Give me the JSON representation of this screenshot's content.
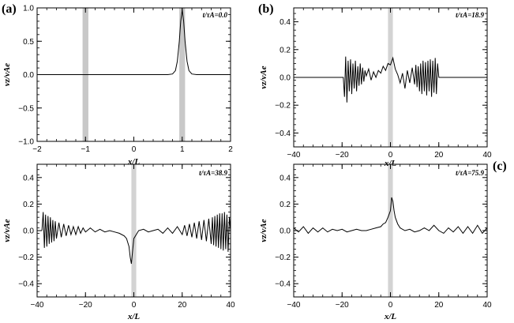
{
  "chart_data": [
    {
      "type": "line",
      "panel_label": "(a)",
      "annotation": "t/τA=0.0",
      "xlabel": "x/L",
      "ylabel": "vz/vAe",
      "xlim": [
        -2,
        2
      ],
      "ylim": [
        -1.0,
        1.0
      ],
      "xticks": [
        -2,
        -1,
        0,
        1,
        2
      ],
      "xtick_labels": [
        "−2",
        "−1",
        "0",
        "1",
        "2"
      ],
      "yticks": [
        -1.0,
        -0.5,
        0.0,
        0.5,
        1.0
      ],
      "ytick_labels": [
        "−1.0",
        "−0.5",
        "0.0",
        "0.5",
        "1.0"
      ],
      "shaded_bands": [
        [
          -1.06,
          -0.94
        ],
        [
          0.94,
          1.06
        ]
      ],
      "series": [
        {
          "x": [
            -2.0,
            0.7,
            0.8,
            0.86,
            0.9,
            0.94,
            0.97,
            1.0,
            1.03,
            1.06,
            1.1,
            1.14,
            1.2,
            1.3,
            2.0
          ],
          "y": [
            0.0,
            0.0,
            0.01,
            0.06,
            0.2,
            0.5,
            0.8,
            0.97,
            0.8,
            0.5,
            0.2,
            0.06,
            0.01,
            0.0,
            0.0
          ]
        }
      ]
    },
    {
      "type": "line",
      "panel_label": "(b)",
      "annotation": "t/τA=18.9",
      "xlabel": "x/L",
      "ylabel": "vz/vAe",
      "xlim": [
        -40,
        40
      ],
      "ylim": [
        -0.5,
        0.5
      ],
      "xticks": [
        -40,
        -20,
        0,
        20,
        40
      ],
      "xtick_labels": [
        "−40",
        "−20",
        "0",
        "20",
        "40"
      ],
      "yticks": [
        -0.4,
        -0.2,
        0.0,
        0.2,
        0.4
      ],
      "ytick_labels": [
        "−0.4",
        "−0.2",
        "0.0",
        "0.2",
        "0.4"
      ],
      "shaded_bands": [
        [
          -1,
          1
        ]
      ],
      "series": [
        {
          "x": [
            -40,
            -19.5,
            -19,
            -18.5,
            -18,
            -17.5,
            -17,
            -16.5,
            -16,
            -15.5,
            -15,
            -14.5,
            -14,
            -13.5,
            -13,
            -12.5,
            -12,
            -11.5,
            -11,
            -10.5,
            -10,
            -9,
            -8,
            -7,
            -6,
            -5,
            -4,
            -3,
            -2,
            -1,
            0,
            1,
            1.5,
            2,
            3,
            4,
            5,
            6,
            7,
            8,
            9,
            10,
            10.5,
            11,
            11.5,
            12,
            12.5,
            13,
            13.5,
            14,
            14.5,
            15,
            15.5,
            16,
            16.5,
            17,
            17.5,
            18,
            18.5,
            19,
            19.5,
            20,
            40
          ],
          "y": [
            0.0,
            0.0,
            -0.14,
            0.15,
            -0.18,
            0.12,
            -0.1,
            0.13,
            -0.12,
            0.1,
            -0.08,
            0.12,
            -0.1,
            0.08,
            -0.06,
            0.1,
            -0.05,
            0.07,
            -0.03,
            0.05,
            0.01,
            0.06,
            -0.02,
            0.04,
            0.0,
            0.05,
            0.03,
            0.08,
            0.05,
            0.1,
            0.09,
            0.14,
            0.1,
            0.06,
            0.02,
            -0.04,
            0.03,
            -0.08,
            0.05,
            -0.04,
            0.07,
            -0.05,
            0.09,
            -0.07,
            0.08,
            -0.1,
            0.1,
            -0.12,
            0.12,
            -0.1,
            0.11,
            -0.13,
            0.12,
            -0.1,
            0.13,
            -0.14,
            0.12,
            -0.11,
            0.14,
            -0.12,
            0.1,
            0.0,
            0.0
          ]
        }
      ]
    },
    {
      "type": "line",
      "annotation": "t/τA=38.9",
      "xlabel": "x/L",
      "ylabel": "vz/vAe",
      "xlim": [
        -40,
        40
      ],
      "ylim": [
        -0.5,
        0.5
      ],
      "xticks": [
        -40,
        -20,
        0,
        20,
        40
      ],
      "xtick_labels": [
        "−40",
        "−20",
        "0",
        "20",
        "40"
      ],
      "yticks": [
        -0.4,
        -0.2,
        0.0,
        0.2,
        0.4
      ],
      "ytick_labels": [
        "−0.4",
        "−0.2",
        "0.0",
        "0.2",
        "0.4"
      ],
      "shaded_bands": [
        [
          -1,
          1
        ]
      ],
      "series": [
        {
          "x": [
            -38,
            -37.5,
            -37,
            -36.5,
            -36,
            -35.5,
            -35,
            -34.5,
            -34,
            -33.5,
            -33,
            -32.5,
            -32,
            -31,
            -30,
            -29,
            -28,
            -27,
            -26,
            -25,
            -24,
            -23,
            -22,
            -21,
            -20,
            -18,
            -16,
            -14,
            -12,
            -10,
            -8,
            -6,
            -4,
            -3,
            -2,
            -1.5,
            -1,
            -0.5,
            0,
            1,
            2,
            4,
            6,
            8,
            10,
            12,
            14,
            16,
            18,
            20,
            21,
            22,
            23,
            24,
            25,
            26,
            27,
            28,
            29,
            30,
            31,
            32,
            32.5,
            33,
            33.5,
            34,
            34.5,
            35,
            35.5,
            36,
            36.5,
            37,
            37.5,
            38,
            38.5,
            39,
            39.5,
            40
          ],
          "y": [
            0.0,
            0.14,
            -0.13,
            0.12,
            -0.12,
            0.11,
            -0.1,
            0.1,
            -0.09,
            0.08,
            -0.08,
            0.07,
            -0.06,
            0.06,
            -0.05,
            0.05,
            -0.04,
            0.04,
            -0.03,
            0.03,
            -0.03,
            0.03,
            -0.02,
            0.02,
            -0.01,
            0.02,
            -0.01,
            0.01,
            -0.01,
            0.0,
            -0.01,
            -0.02,
            -0.04,
            -0.06,
            -0.12,
            -0.2,
            -0.25,
            -0.15,
            -0.06,
            -0.03,
            0.0,
            0.01,
            -0.01,
            0.0,
            0.01,
            -0.02,
            0.02,
            -0.02,
            0.03,
            -0.03,
            0.04,
            -0.04,
            0.05,
            -0.05,
            0.06,
            -0.06,
            0.07,
            -0.07,
            0.08,
            -0.08,
            0.09,
            -0.1,
            0.1,
            -0.11,
            0.11,
            -0.12,
            0.12,
            -0.13,
            0.13,
            -0.14,
            0.13,
            -0.15,
            0.14,
            -0.14,
            0.12,
            -0.16,
            0.1,
            0.0
          ]
        }
      ]
    },
    {
      "type": "line",
      "panel_label": "(c)",
      "annotation": "t/τA=75.9",
      "xlabel": "x/L",
      "ylabel": "vz/vAe",
      "xlim": [
        -40,
        40
      ],
      "ylim": [
        -0.5,
        0.5
      ],
      "xticks": [
        -40,
        -20,
        0,
        20,
        40
      ],
      "xtick_labels": [
        "−40",
        "−20",
        "0",
        "20",
        "40"
      ],
      "yticks": [
        -0.4,
        -0.2,
        0.0,
        0.2,
        0.4
      ],
      "ytick_labels": [
        "−0.4",
        "−0.2",
        "0.0",
        "0.2",
        "0.4"
      ],
      "shaded_bands": [
        [
          -1,
          1
        ]
      ],
      "series": [
        {
          "x": [
            -40,
            -38,
            -36,
            -34,
            -32,
            -30,
            -28,
            -26,
            -24,
            -22,
            -20,
            -18,
            -16,
            -14,
            -12,
            -10,
            -8,
            -6,
            -4,
            -3,
            -2,
            -1,
            0,
            0.5,
            1,
            1.5,
            2,
            3,
            4,
            6,
            8,
            10,
            12,
            14,
            16,
            18,
            20,
            22,
            24,
            26,
            28,
            30,
            32,
            34,
            36,
            38,
            40
          ],
          "y": [
            0.02,
            -0.01,
            0.03,
            -0.02,
            0.02,
            -0.01,
            0.02,
            -0.01,
            0.01,
            0.0,
            0.01,
            -0.01,
            0.0,
            0.01,
            0.0,
            0.0,
            0.01,
            0.02,
            0.03,
            0.05,
            0.06,
            0.1,
            0.15,
            0.25,
            0.22,
            0.15,
            0.1,
            0.05,
            0.02,
            0.0,
            0.01,
            -0.01,
            0.0,
            0.02,
            0.0,
            0.04,
            0.0,
            -0.02,
            0.02,
            -0.01,
            0.03,
            -0.02,
            0.03,
            -0.02,
            0.04,
            -0.02,
            0.02
          ]
        }
      ]
    }
  ]
}
